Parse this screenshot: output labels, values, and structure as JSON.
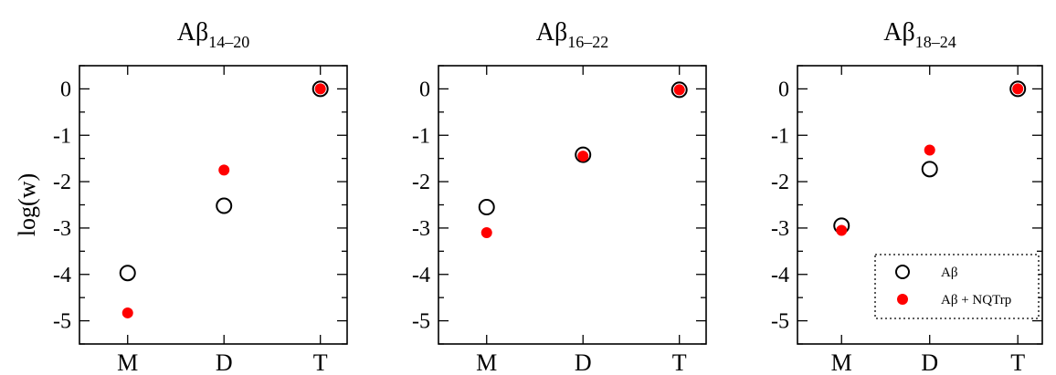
{
  "chart_data": {
    "type": "scatter",
    "ylabel": "log(w)",
    "categories": [
      "M",
      "D",
      "T"
    ],
    "ylim": [
      -5.5,
      0.5
    ],
    "yticks": [
      "0",
      "-1",
      "-2",
      "-3",
      "-4",
      "-5"
    ],
    "legend_placement": "bottom-right of third panel",
    "series_styles": [
      {
        "label": "Aβ",
        "marker": "open-circle",
        "color": "#000000"
      },
      {
        "label": "Aβ + NQTrp",
        "marker": "filled-circle",
        "color": "#ff0000"
      }
    ],
    "panels": [
      {
        "title_main": "Aβ",
        "title_sub": "14–20",
        "series": [
          {
            "name": "Aβ",
            "values": [
              -3.97,
              -2.52,
              0.0
            ]
          },
          {
            "name": "Aβ + NQTrp",
            "values": [
              -4.83,
              -1.75,
              0.0
            ]
          }
        ]
      },
      {
        "title_main": "Aβ",
        "title_sub": "16–22",
        "series": [
          {
            "name": "Aβ",
            "values": [
              -2.55,
              -1.42,
              -0.02
            ]
          },
          {
            "name": "Aβ + NQTrp",
            "values": [
              -3.1,
              -1.45,
              -0.02
            ]
          }
        ]
      },
      {
        "title_main": "Aβ",
        "title_sub": "18–24",
        "series": [
          {
            "name": "Aβ",
            "values": [
              -2.95,
              -1.73,
              0.0
            ]
          },
          {
            "name": "Aβ + NQTrp",
            "values": [
              -3.05,
              -1.32,
              0.0
            ]
          }
        ]
      }
    ]
  }
}
